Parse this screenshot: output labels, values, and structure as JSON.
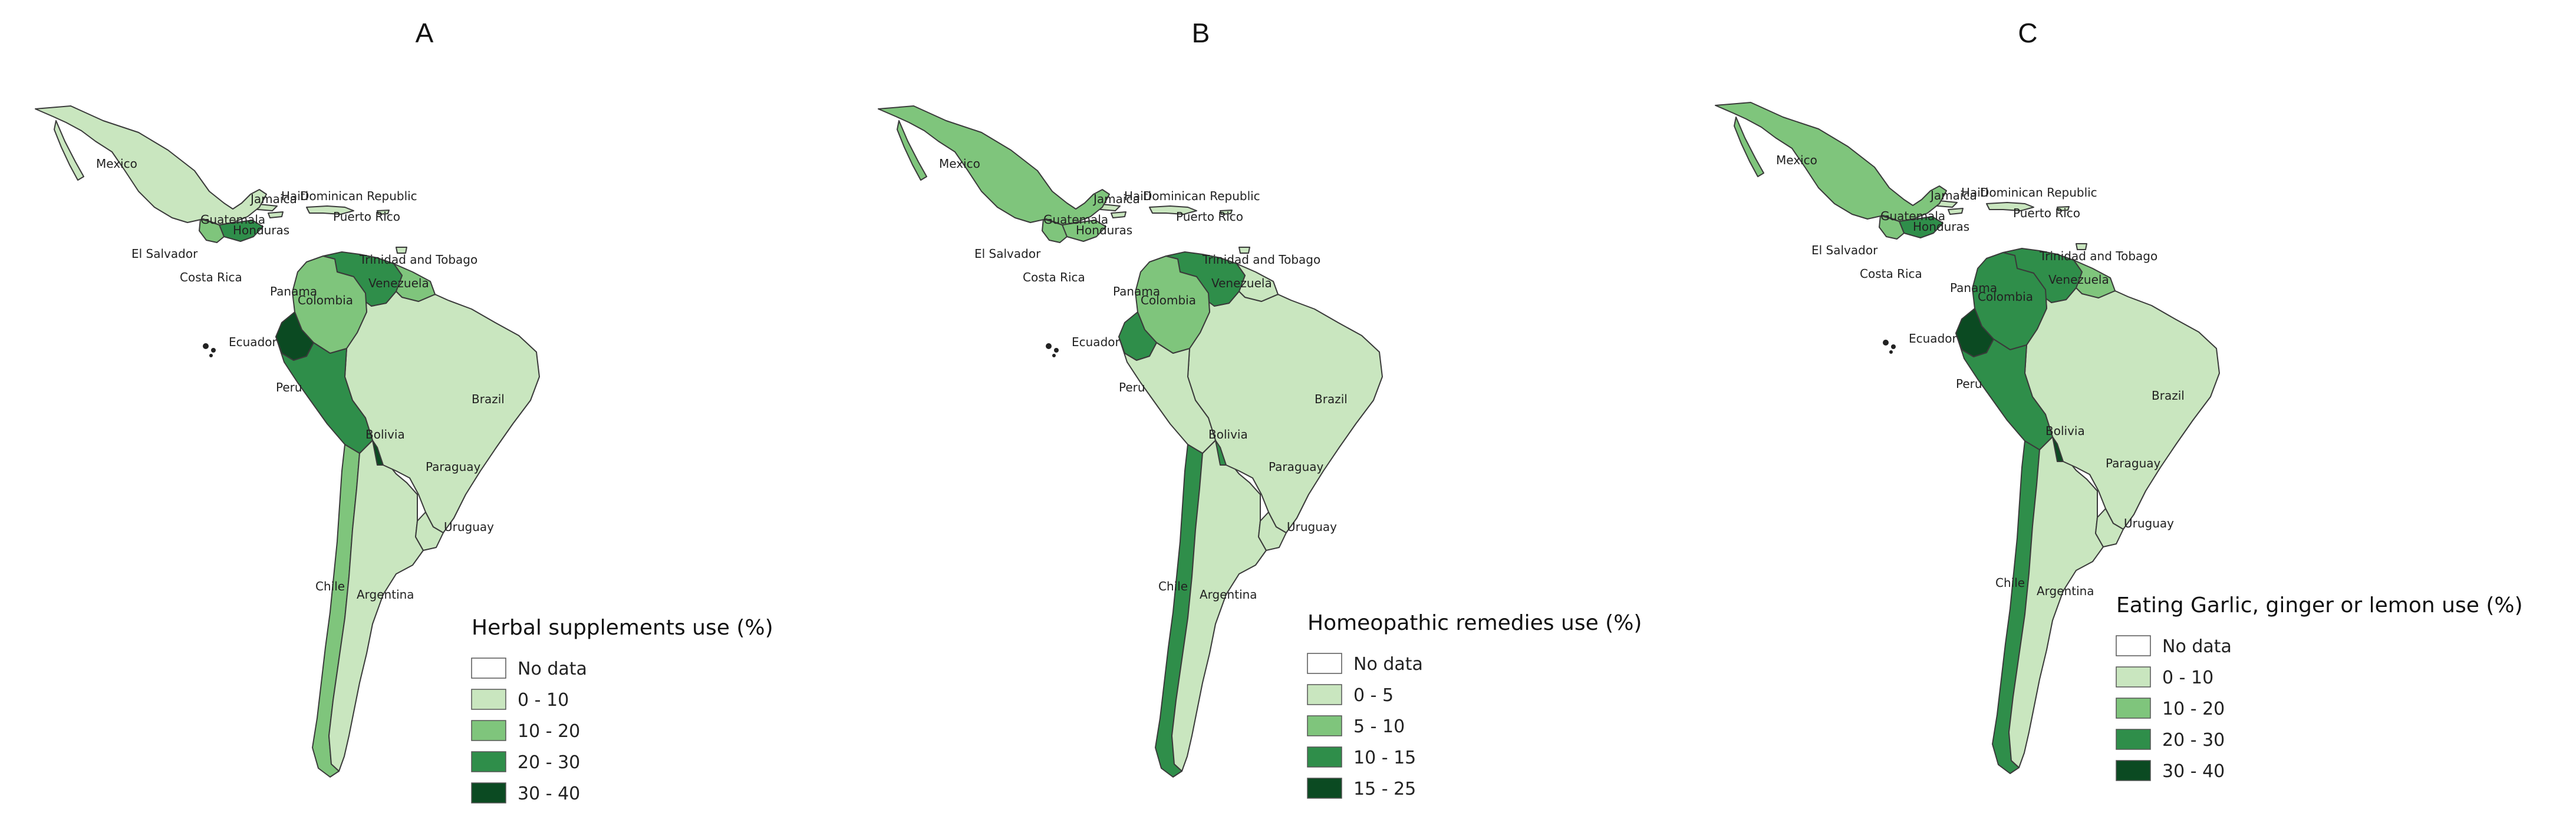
{
  "colors": {
    "no_data": "#ffffff",
    "class1": "#c9e6bf",
    "class2": "#7fc57c",
    "class3": "#2f8e4a",
    "class4": "#0b4a22",
    "border": "#3a3a3a"
  },
  "labels": {
    "mexico": "Mexico",
    "jamaica": "Jamaica",
    "haiti": "Haiti",
    "dominican_republic": "Dominican Republic",
    "puerto_rico": "Puerto Rico",
    "guatemala": "Guatemala",
    "honduras": "Honduras",
    "el_salvador": "El Salvador",
    "trinidad": "Trinidad and Tobago",
    "costa_rica": "Costa Rica",
    "panama": "Panama",
    "venezuela": "Venezuela",
    "colombia": "Colombia",
    "ecuador": "Ecuador",
    "peru": "Peru",
    "brazil": "Brazil",
    "bolivia": "Bolivia",
    "paraguay": "Paraguay",
    "uruguay": "Uruguay",
    "chile": "Chile",
    "argentina": "Argentina"
  },
  "panels": [
    {
      "letter": "A",
      "legend_title": "Herbal supplements use (%)",
      "legend": [
        "No data",
        "0 - 10",
        "10 - 20",
        "20 - 30",
        "30 - 40"
      ],
      "classes": {
        "mexico": 1,
        "guatemala": 2,
        "honduras": 3,
        "caribbean": 1,
        "colombia": 2,
        "venezuela": 3,
        "guianas": 2,
        "ecuador": 4,
        "peru": 3,
        "bolivia": 4,
        "brazil": 1,
        "paraguay": 0,
        "uruguay": 1,
        "argentina": 1,
        "chile": 2
      }
    },
    {
      "letter": "B",
      "legend_title": "Homeopathic remedies use (%)",
      "legend": [
        "No data",
        "0 - 5",
        "5 - 10",
        "10 - 15",
        "15 - 25"
      ],
      "classes": {
        "mexico": 2,
        "guatemala": 2,
        "honduras": 2,
        "caribbean": 1,
        "colombia": 2,
        "venezuela": 3,
        "guianas": 1,
        "ecuador": 3,
        "peru": 1,
        "bolivia": 3,
        "brazil": 1,
        "paraguay": 0,
        "uruguay": 1,
        "argentina": 1,
        "chile": 3
      }
    },
    {
      "letter": "C",
      "legend_title": "Eating Garlic, ginger or lemon use (%)",
      "legend": [
        "No data",
        "0 - 10",
        "10 - 20",
        "20 - 30",
        "30 - 40"
      ],
      "classes": {
        "mexico": 2,
        "guatemala": 2,
        "honduras": 3,
        "caribbean": 1,
        "colombia": 3,
        "venezuela": 3,
        "guianas": 2,
        "ecuador": 4,
        "peru": 3,
        "bolivia": 4,
        "brazil": 1,
        "paraguay": 0,
        "uruguay": 1,
        "argentina": 1,
        "chile": 3
      }
    }
  ]
}
